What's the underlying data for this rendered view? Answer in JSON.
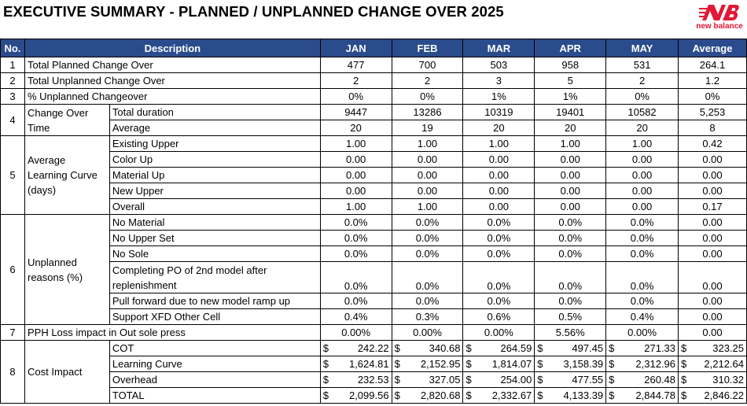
{
  "title": "EXECUTIVE SUMMARY - PLANNED / UNPLANNED CHANGE OVER 2025",
  "logo": {
    "brand": "new balance",
    "icon": "nb-logo-icon",
    "color": "#e21836"
  },
  "header": {
    "no": "No.",
    "description": "Description",
    "months": [
      "JAN",
      "FEB",
      "MAR",
      "APR",
      "MAY"
    ],
    "average": "Average"
  },
  "rows": {
    "r1": {
      "no": "1",
      "label": "Total Planned Change Over",
      "values": [
        "477",
        "700",
        "503",
        "958",
        "531"
      ],
      "avg": "264.1"
    },
    "r2": {
      "no": "2",
      "label": "Total Unplanned Change Over",
      "values": [
        "2",
        "2",
        "3",
        "5",
        "2"
      ],
      "avg": "1.2"
    },
    "r3": {
      "no": "3",
      "label": "% Unplanned Changeover",
      "values": [
        "0%",
        "0%",
        "1%",
        "1%",
        "0%"
      ],
      "avg": "0%"
    },
    "r4": {
      "no": "4",
      "group": "Change Over Time",
      "sub": [
        {
          "label": "Total duration",
          "values": [
            "9447",
            "13286",
            "10319",
            "19401",
            "10582"
          ],
          "avg": "5,253"
        },
        {
          "label": "Average",
          "values": [
            "20",
            "19",
            "20",
            "20",
            "20"
          ],
          "avg": "8"
        }
      ]
    },
    "r5": {
      "no": "5",
      "group": "Average Learning Curve (days)",
      "sub": [
        {
          "label": "Existing Upper",
          "values": [
            "1.00",
            "1.00",
            "1.00",
            "1.00",
            "1.00"
          ],
          "avg": "0.42"
        },
        {
          "label": "Color Up",
          "values": [
            "0.00",
            "0.00",
            "0.00",
            "0.00",
            "0.00"
          ],
          "avg": "0.00"
        },
        {
          "label": "Material Up",
          "values": [
            "0.00",
            "0.00",
            "0.00",
            "0.00",
            "0.00"
          ],
          "avg": "0.00"
        },
        {
          "label": "New Upper",
          "values": [
            "0.00",
            "0.00",
            "0.00",
            "0.00",
            "0.00"
          ],
          "avg": "0.00"
        },
        {
          "label": "Overall",
          "values": [
            "1.00",
            "1.00",
            "0.00",
            "0.00",
            "0.00"
          ],
          "avg": "0.17"
        }
      ]
    },
    "r6": {
      "no": "6",
      "group": "Unplanned reasons (%)",
      "sub": [
        {
          "label": "No Material",
          "values": [
            "0.0%",
            "0.0%",
            "0.0%",
            "0.0%",
            "0.0%"
          ],
          "avg": "0.00"
        },
        {
          "label": "No Upper Set",
          "values": [
            "0.0%",
            "0.0%",
            "0.0%",
            "0.0%",
            "0.0%"
          ],
          "avg": "0.00"
        },
        {
          "label": "No Sole",
          "values": [
            "0.0%",
            "0.0%",
            "0.0%",
            "0.0%",
            "0.0%"
          ],
          "avg": "0.00"
        },
        {
          "label": "Completing PO of 2nd model after replenishment",
          "values": [
            "0.0%",
            "0.0%",
            "0.0%",
            "0.0%",
            "0.0%"
          ],
          "avg": "0.00"
        },
        {
          "label": "Pull forward due to new model ramp up",
          "values": [
            "0.0%",
            "0.0%",
            "0.0%",
            "0.0%",
            "0.0%"
          ],
          "avg": "0.00"
        },
        {
          "label": "Support XFD Other Cell",
          "values": [
            "0.4%",
            "0.3%",
            "0.6%",
            "0.5%",
            "0.4%"
          ],
          "avg": "0.00"
        }
      ]
    },
    "r7": {
      "no": "7",
      "label": "PPH Loss impact in Out sole press",
      "values": [
        "0.00%",
        "0.00%",
        "0.00%",
        "5.56%",
        "0.00%"
      ],
      "avg": "0.00"
    },
    "r8": {
      "no": "8",
      "group": "Cost Impact",
      "currency": "$",
      "sub": [
        {
          "label": "COT",
          "values": [
            "242.22",
            "340.68",
            "264.59",
            "497.45",
            "271.33"
          ],
          "avg": "323.25"
        },
        {
          "label": "Learning Curve",
          "values": [
            "1,624.81",
            "2,152.95",
            "1,814.07",
            "3,158.39",
            "2,312.96"
          ],
          "avg": "2,212.64"
        },
        {
          "label": "Overhead",
          "values": [
            "232.53",
            "327.05",
            "254.00",
            "477.55",
            "260.48"
          ],
          "avg": "310.32"
        },
        {
          "label": "TOTAL",
          "values": [
            "2,099.56",
            "2,820.68",
            "2,332.67",
            "4,133.39",
            "2,844.78"
          ],
          "avg": "2,846.22"
        }
      ]
    }
  }
}
